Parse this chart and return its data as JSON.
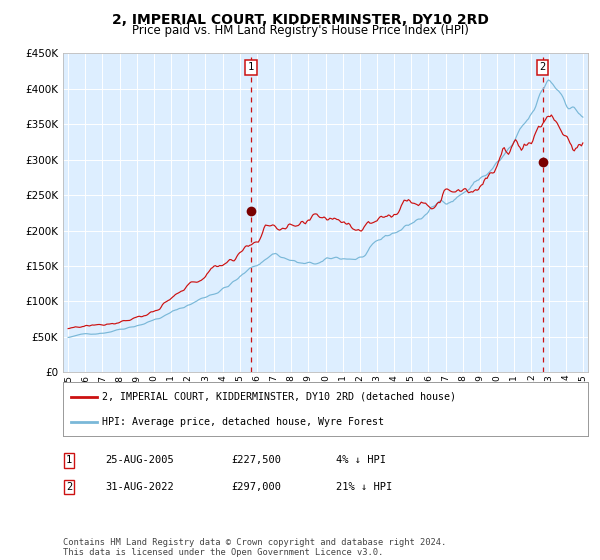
{
  "title": "2, IMPERIAL COURT, KIDDERMINSTER, DY10 2RD",
  "subtitle": "Price paid vs. HM Land Registry's House Price Index (HPI)",
  "title_fontsize": 10,
  "subtitle_fontsize": 8.5,
  "background_color": "#ffffff",
  "plot_bg_color": "#ddeeff",
  "grid_color": "#ffffff",
  "hpi_color": "#7ab8d8",
  "price_color": "#cc1111",
  "yticks": [
    0,
    50000,
    100000,
    150000,
    200000,
    250000,
    300000,
    350000,
    400000,
    450000
  ],
  "ytick_labels": [
    "£0",
    "£50K",
    "£100K",
    "£150K",
    "£200K",
    "£250K",
    "£300K",
    "£350K",
    "£400K",
    "£450K"
  ],
  "x_start_year": 1995,
  "x_end_year": 2025,
  "sale1_date": 2005.65,
  "sale1_price": 227500,
  "sale2_date": 2022.66,
  "sale2_price": 297000,
  "legend_line1": "2, IMPERIAL COURT, KIDDERMINSTER, DY10 2RD (detached house)",
  "legend_line2": "HPI: Average price, detached house, Wyre Forest",
  "table_row1": [
    "1",
    "25-AUG-2005",
    "£227,500",
    "4% ↓ HPI"
  ],
  "table_row2": [
    "2",
    "31-AUG-2022",
    "£297,000",
    "21% ↓ HPI"
  ],
  "footer": "Contains HM Land Registry data © Crown copyright and database right 2024.\nThis data is licensed under the Open Government Licence v3.0."
}
